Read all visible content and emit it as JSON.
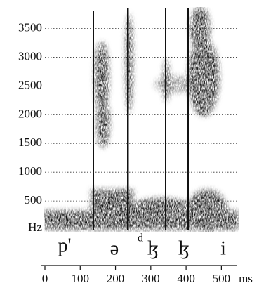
{
  "chart_data": {
    "type": "spectrogram",
    "ylim": [
      0,
      3850
    ],
    "yticks": [
      {
        "value": 0,
        "label": "Hz"
      },
      500,
      1000,
      1500,
      2000,
      2500,
      3000,
      3500
    ],
    "xlim": [
      0,
      545
    ],
    "xticks": [
      0,
      100,
      200,
      300,
      400,
      500
    ],
    "x_unit": "ms",
    "segments": [
      "p'",
      "ə",
      "d",
      "ɮ",
      "ɮ",
      "i"
    ],
    "grid": true
  }
}
